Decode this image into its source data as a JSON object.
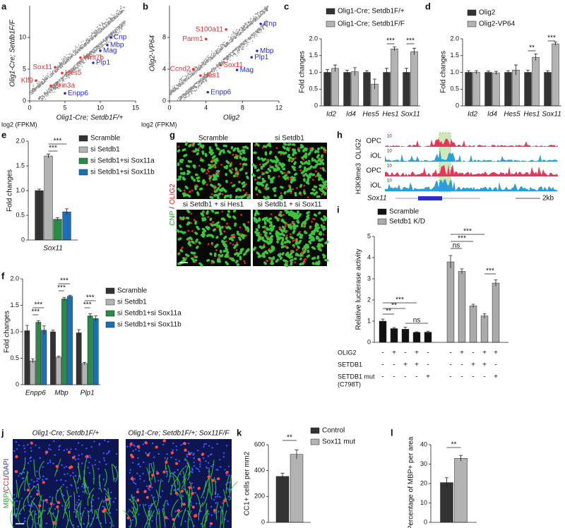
{
  "panel_labels": [
    "a",
    "b",
    "c",
    "d",
    "e",
    "f",
    "g",
    "h",
    "i",
    "j",
    "k",
    "l"
  ],
  "chart_data": [
    {
      "type": "scatter",
      "x_label": "Olig1-Cre; Setdb1F/+",
      "y_label": "Olig1-Cre; Setdb1F/F",
      "unit_label": "log2 (FPKM)",
      "xlim": [
        0,
        15
      ],
      "ylim": [
        0,
        15
      ],
      "xticks": [
        0,
        5,
        10,
        15
      ],
      "yticks": [
        0,
        5,
        10
      ],
      "points": [
        {
          "label": "Cnp",
          "x": 11.5,
          "y": 10.0,
          "color": "#2b2bd0"
        },
        {
          "label": "Mbp",
          "x": 11.0,
          "y": 8.8,
          "color": "#2b2bd0"
        },
        {
          "label": "Mag",
          "x": 10.0,
          "y": 7.9,
          "color": "#2b2bd0"
        },
        {
          "label": "Plp1",
          "x": 9.0,
          "y": 6.0,
          "color": "#2b2bd0"
        },
        {
          "label": "Enpp6",
          "x": 5.0,
          "y": 1.2,
          "color": "#2b2bd0"
        },
        {
          "label": "Sox11",
          "x": 3.6,
          "y": 5.3,
          "color": "#e8312f"
        },
        {
          "label": "Wnt7b",
          "x": 7.2,
          "y": 6.8,
          "color": "#e8312f"
        },
        {
          "label": "Hes5",
          "x": 4.6,
          "y": 4.4,
          "color": "#e8312f"
        },
        {
          "label": "Klf9",
          "x": 0.9,
          "y": 3.2,
          "color": "#e8312f"
        },
        {
          "label": "Grin3a",
          "x": 3.0,
          "y": 2.4,
          "color": "#e8312f"
        }
      ]
    },
    {
      "type": "scatter",
      "x_label": "Olig2",
      "y_label": "Olig2-VP64",
      "unit_label": "log2 (FPKM)",
      "xlim": [
        0,
        12
      ],
      "ylim": [
        0,
        12
      ],
      "xticks": [
        0,
        4,
        8,
        12
      ],
      "yticks": [
        0,
        4,
        8
      ],
      "points": [
        {
          "label": "Cnp",
          "x": 10.0,
          "y": 9.7,
          "color": "#2b2bd0"
        },
        {
          "label": "Mbp",
          "x": 9.6,
          "y": 6.3,
          "color": "#2b2bd0"
        },
        {
          "label": "Plp1",
          "x": 9.0,
          "y": 5.5,
          "color": "#2b2bd0"
        },
        {
          "label": "Mag",
          "x": 7.4,
          "y": 3.9,
          "color": "#2b2bd0"
        },
        {
          "label": "Enpp6",
          "x": 4.2,
          "y": 1.1,
          "color": "#2b2bd0"
        },
        {
          "label": "S100a11",
          "x": 6.2,
          "y": 9.0,
          "color": "#e8312f"
        },
        {
          "label": "Parm1",
          "x": 4.0,
          "y": 7.8,
          "color": "#e8312f"
        },
        {
          "label": "Sox11",
          "x": 5.6,
          "y": 4.5,
          "color": "#e8312f"
        },
        {
          "label": "Ccnd2",
          "x": 2.6,
          "y": 4.0,
          "color": "#e8312f"
        },
        {
          "label": "Hes1",
          "x": 3.4,
          "y": 3.2,
          "color": "#e8312f"
        }
      ]
    },
    {
      "type": "bar",
      "y_label": "Fold changes",
      "categories": [
        "Id2",
        "Id4",
        "Hes5",
        "Hes1",
        "Sox11"
      ],
      "ylim": [
        0,
        2
      ],
      "yticks": [
        0,
        0.5,
        {
          "value": 1,
          "label": "1.0"
        },
        1.5,
        {
          "value": 2,
          "label": "2.0"
        }
      ],
      "series": [
        {
          "name": "Olig1-Cre; Setdb1F/+",
          "color": "#333333",
          "values": [
            1,
            1,
            1,
            1,
            1
          ],
          "errors": [
            0.08,
            0.06,
            0.05,
            0.12,
            0.12
          ]
        },
        {
          "name": "Olig1-Cre; Setdb1F/F",
          "color": "#b3b3b3",
          "values": [
            1.12,
            1.02,
            0.65,
            1.7,
            1.62
          ],
          "errors": [
            0.1,
            0.12,
            0.15,
            0.06,
            0.1
          ]
        }
      ],
      "annotations": [
        "***",
        "***"
      ]
    },
    {
      "type": "bar",
      "y_label": "Fold changes",
      "categories": [
        "Id2",
        "Id4",
        "Hes5",
        "Hes1",
        "Sox11"
      ],
      "ylim": [
        0,
        2
      ],
      "yticks": [
        0,
        0.5,
        {
          "value": 1,
          "label": "1.0"
        },
        1.5,
        {
          "value": 2,
          "label": "2.0"
        }
      ],
      "series": [
        {
          "name": "Olig2",
          "color": "#333333",
          "values": [
            1,
            1,
            1,
            1,
            1
          ],
          "errors": [
            0.05,
            0.04,
            0.05,
            0.06,
            0.05
          ]
        },
        {
          "name": "Olig2-VP64",
          "color": "#b3b3b3",
          "values": [
            1.0,
            0.98,
            1.07,
            1.45,
            1.85
          ],
          "errors": [
            0.05,
            0.05,
            0.15,
            0.1,
            0.05
          ]
        }
      ],
      "annotations": [
        "**",
        "***"
      ]
    },
    {
      "type": "bar",
      "y_label": "Fold changes",
      "categories": [
        "Sox11"
      ],
      "ylim": [
        0,
        2
      ],
      "yticks": [
        0,
        0.5,
        {
          "value": 1,
          "label": "1.0"
        },
        1.5,
        {
          "value": 2,
          "label": "2.0"
        }
      ],
      "series": [
        {
          "name": "Scramble",
          "color": "#333333",
          "values": [
            1.0
          ],
          "errors": [
            0.03
          ]
        },
        {
          "name": "si Setdb1",
          "color": "#b3b3b3",
          "values": [
            1.7
          ],
          "errors": [
            0.04
          ]
        },
        {
          "name": "si Setdb1+si Sox11a",
          "color": "#2a8a4a",
          "values": [
            0.42
          ],
          "errors": [
            0.03
          ]
        },
        {
          "name": "si Setdb1+si Sox11b",
          "color": "#1a70b8",
          "values": [
            0.57
          ],
          "errors": [
            0.06
          ]
        }
      ],
      "annotations": [
        "***",
        "***"
      ]
    },
    {
      "type": "bar",
      "y_label": "Fold changes",
      "categories": [
        "Enpp6",
        "Mbp",
        "Plp1"
      ],
      "ylim": [
        0,
        2
      ],
      "yticks": [
        0,
        0.5,
        {
          "value": 1,
          "label": "1.0"
        },
        1.5,
        {
          "value": 2,
          "label": "2.0"
        }
      ],
      "series": [
        {
          "name": "Scramble",
          "color": "#333333",
          "values": [
            1.02,
            1.0,
            0.98
          ],
          "errors": [
            0.1,
            0.03,
            0.06
          ]
        },
        {
          "name": "si Setdb1",
          "color": "#b3b3b3",
          "values": [
            0.45,
            0.52,
            0.4
          ],
          "errors": [
            0.04,
            0.02,
            0.02
          ]
        },
        {
          "name": "si Setdb1+si Sox11a",
          "color": "#2a8a4a",
          "values": [
            1.18,
            1.62,
            1.3
          ],
          "errors": [
            0.03,
            0.03,
            0.04
          ]
        },
        {
          "name": "si Setdb1+si Sox11b",
          "color": "#1a70b8",
          "values": [
            1.03,
            1.67,
            1.25
          ],
          "errors": [
            0.08,
            0.02,
            0.05
          ]
        }
      ],
      "annotations": [
        "***",
        "***",
        "***",
        "***",
        "***",
        "***"
      ]
    },
    {
      "type": "bar",
      "y_label": "Relative luciferase activity",
      "ylim": [
        0,
        5
      ],
      "yticks": [
        0,
        1,
        2,
        3,
        4,
        5
      ],
      "series": [
        {
          "name": "Scramble",
          "color": "#111111",
          "values": [
            1.0,
            0.65,
            0.62,
            0.47,
            0.48
          ],
          "errors": [
            0.1,
            0.05,
            0.1,
            0.03,
            0.05
          ]
        },
        {
          "name": "Setdb1 K/D",
          "color": "#aaaaaa",
          "values": [
            3.8,
            3.35,
            1.72,
            1.25,
            2.8
          ],
          "errors": [
            0.3,
            0.12,
            0.08,
            0.1,
            0.15
          ]
        }
      ],
      "annotations": [
        "**",
        "**",
        "***",
        "ns",
        "ns",
        "***",
        "***",
        "***"
      ],
      "conditions": [
        {
          "label": "OLIG2",
          "signs": [
            "-",
            "+",
            "-",
            "+",
            "-",
            "-",
            "+",
            "-",
            "+",
            "+"
          ]
        },
        {
          "label": "SETDB1",
          "signs": [
            "-",
            "-",
            "+",
            "+",
            "-",
            "-",
            "-",
            "+",
            "+",
            "-"
          ]
        },
        {
          "label": "SETDB1 mut",
          "note": "(C798T)",
          "signs": [
            "-",
            "-",
            "-",
            "-",
            "+",
            "-",
            "-",
            "-",
            "-",
            "+"
          ]
        }
      ]
    },
    {
      "type": "bar",
      "y_label": "CC1+ cells per mm2",
      "ylim": [
        0,
        600
      ],
      "yticks": [
        0,
        200,
        400,
        600
      ],
      "series": [
        {
          "name": "Control",
          "color": "#333333",
          "values": [
            355
          ],
          "errors": [
            25
          ]
        },
        {
          "name": "Sox11 mut",
          "color": "#b3b3b3",
          "values": [
            525
          ],
          "errors": [
            35
          ]
        }
      ],
      "annotations": [
        "**"
      ]
    },
    {
      "type": "bar",
      "y_label": "Percentage of MBP+ per area",
      "ylim": [
        0,
        40
      ],
      "yticks": [
        0,
        10,
        20,
        30,
        40
      ],
      "series": [
        {
          "color": "#333333",
          "values": [
            20.5
          ],
          "errors": [
            2.5
          ]
        },
        {
          "color": "#b3b3b3",
          "values": [
            33
          ],
          "errors": [
            1.5
          ]
        }
      ],
      "annotations": [
        "**"
      ]
    }
  ],
  "panel_g": {
    "columns": [
      "Scramble",
      "si Setdb1"
    ],
    "captions": [
      "si Setdb1 + si Hes1",
      "si Setdb1 + si Sox11"
    ],
    "channels": [
      "CNP",
      "OLIG2"
    ],
    "separator": "/"
  },
  "panel_h": {
    "marks": [
      "OLIG2",
      "H3K9me3"
    ],
    "tracks": [
      {
        "cell": "OPC",
        "scale": 10
      },
      {
        "cell": "iOL",
        "scale": 10
      },
      {
        "cell": "OPC",
        "scale": 10
      },
      {
        "cell": "iOL",
        "scale": 10
      }
    ],
    "gene": "Sox11",
    "scale_bar": "2kb"
  },
  "panel_j": {
    "columns": [
      "Olig1-Cre; Setdb1F/+",
      "Olig1-Cre; Setdb1F/+; Sox11F/F"
    ],
    "channels": [
      "MBP",
      "CC1",
      "DAPI"
    ],
    "separator": "/"
  }
}
